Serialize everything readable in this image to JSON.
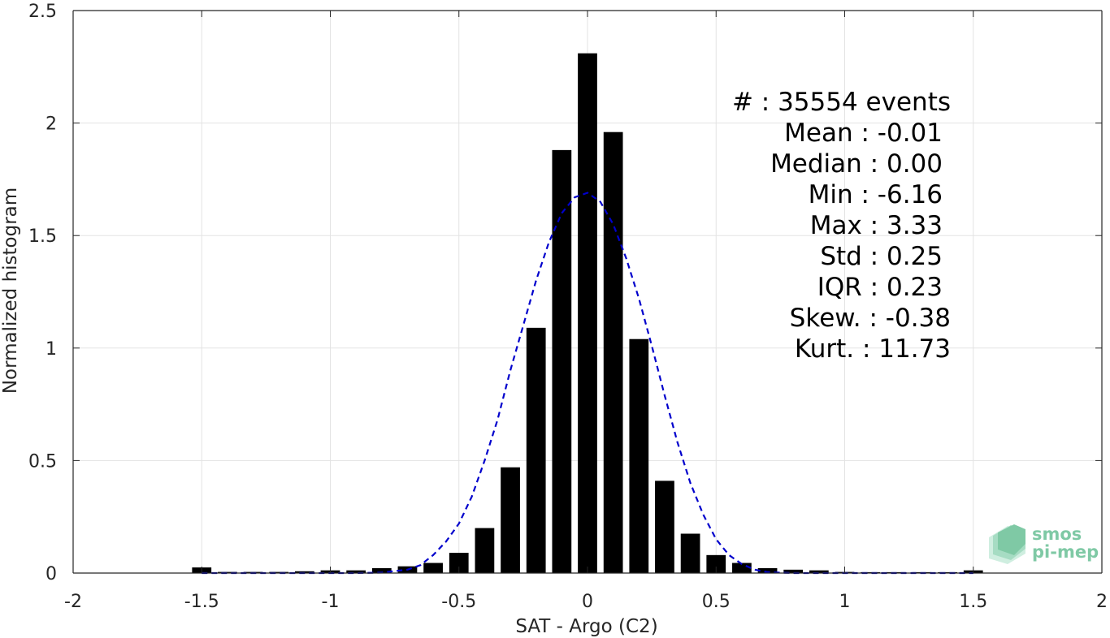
{
  "chart_data": {
    "type": "bar",
    "xlabel": "SAT - Argo (C2)",
    "ylabel": "Normalized histogram",
    "xlim": [
      -2,
      2
    ],
    "ylim": [
      0,
      2.5
    ],
    "x_ticks": [
      -2,
      -1.5,
      -1,
      -0.5,
      0,
      0.5,
      1,
      1.5,
      2
    ],
    "x_tick_labels": [
      "-2",
      "-1.5",
      "-1",
      "-0.5",
      "0",
      "0.5",
      "1",
      "1.5",
      "2"
    ],
    "y_ticks": [
      0,
      0.5,
      1,
      1.5,
      2,
      2.5
    ],
    "y_tick_labels": [
      "0",
      "0.5",
      "1",
      "1.5",
      "2",
      "2.5"
    ],
    "grid": true,
    "bar_color": "#000000",
    "bin_width": 0.1,
    "bars": {
      "x": [
        -1.5,
        -1.4,
        -1.3,
        -1.2,
        -1.1,
        -1.0,
        -0.9,
        -0.8,
        -0.7,
        -0.6,
        -0.5,
        -0.4,
        -0.3,
        -0.2,
        -0.1,
        0.0,
        0.1,
        0.2,
        0.3,
        0.4,
        0.5,
        0.6,
        0.7,
        0.8,
        0.9,
        1.0,
        1.1,
        1.2,
        1.3,
        1.4,
        1.5
      ],
      "values": [
        0.025,
        0.005,
        0.005,
        0.005,
        0.008,
        0.012,
        0.012,
        0.022,
        0.03,
        0.045,
        0.09,
        0.2,
        0.47,
        1.09,
        1.88,
        2.31,
        1.96,
        1.04,
        0.41,
        0.175,
        0.08,
        0.045,
        0.022,
        0.015,
        0.012,
        0.005,
        0.004,
        0.004,
        0.004,
        0.004,
        0.012
      ]
    },
    "fit_curve": {
      "style": "dashed",
      "color": "#0000cc",
      "x": [
        -1.5,
        -1.4,
        -1.3,
        -1.2,
        -1.1,
        -1.0,
        -0.9,
        -0.8,
        -0.7,
        -0.65,
        -0.6,
        -0.55,
        -0.5,
        -0.45,
        -0.4,
        -0.35,
        -0.3,
        -0.25,
        -0.2,
        -0.15,
        -0.1,
        -0.05,
        0.0,
        0.05,
        0.1,
        0.15,
        0.2,
        0.25,
        0.3,
        0.35,
        0.4,
        0.45,
        0.5,
        0.55,
        0.6,
        0.65,
        0.7,
        0.8,
        0.9,
        1.0,
        1.1,
        1.2,
        1.3,
        1.4,
        1.5
      ],
      "values": [
        0.0,
        0.0,
        0.0,
        0.0,
        0.0,
        0.0,
        0.0,
        0.002,
        0.015,
        0.035,
        0.08,
        0.14,
        0.22,
        0.34,
        0.5,
        0.68,
        0.9,
        1.1,
        1.3,
        1.47,
        1.6,
        1.67,
        1.69,
        1.65,
        1.55,
        1.4,
        1.22,
        1.01,
        0.79,
        0.58,
        0.4,
        0.26,
        0.15,
        0.08,
        0.04,
        0.015,
        0.004,
        0.0,
        0.0,
        0.0,
        0.0,
        0.0,
        0.0,
        0.0,
        0.0
      ]
    },
    "annotations": [
      "#  : 35554 events",
      "Mean : -0.01",
      "Median : 0.00",
      "Min : -6.16",
      "Max : 3.33",
      "Std : 0.25",
      "IQR : 0.23",
      "Skew. : -0.38",
      "Kurt. : 11.73"
    ]
  },
  "logo": {
    "line1": "smos",
    "line2": "pi-mep",
    "color": "#7fc9a5"
  }
}
